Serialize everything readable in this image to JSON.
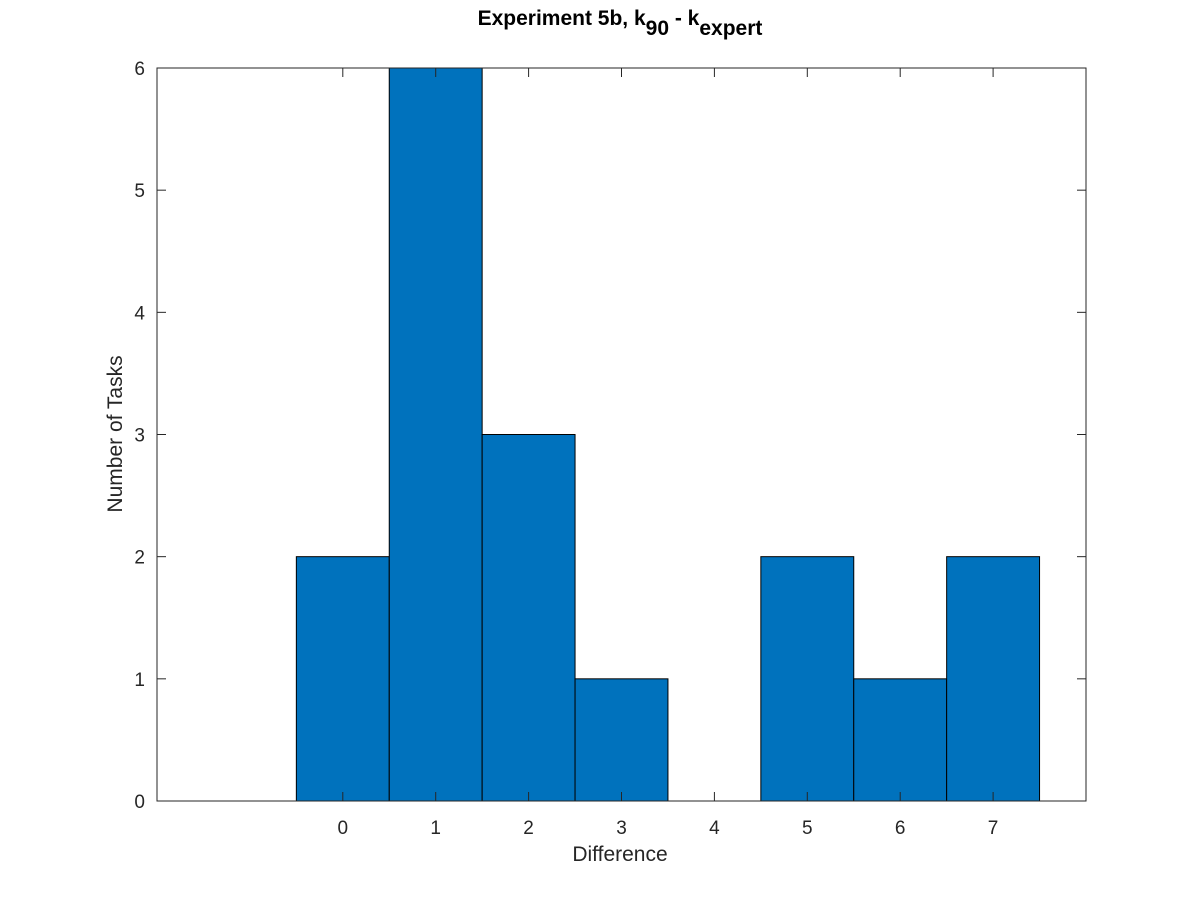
{
  "chart_data": {
    "type": "bar",
    "title": {
      "prefix": "Experiment 5b, k",
      "sub1": "90",
      "middle": " - k",
      "sub2": "expert"
    },
    "xlabel": "Difference",
    "ylabel": "Number of Tasks",
    "categories": [
      "0",
      "1",
      "2",
      "3",
      "4",
      "5",
      "6",
      "7"
    ],
    "x": [
      0,
      1,
      2,
      3,
      4,
      5,
      6,
      7
    ],
    "values": [
      2,
      6,
      3,
      1,
      0,
      2,
      1,
      2
    ],
    "xlim": [
      -2,
      8
    ],
    "ylim": [
      0,
      6
    ],
    "yticks": [
      "0",
      "1",
      "2",
      "3",
      "4",
      "5",
      "6"
    ],
    "grid": false,
    "legend": "none",
    "bar_color": "#0072BD",
    "edge_color": "#000000"
  }
}
